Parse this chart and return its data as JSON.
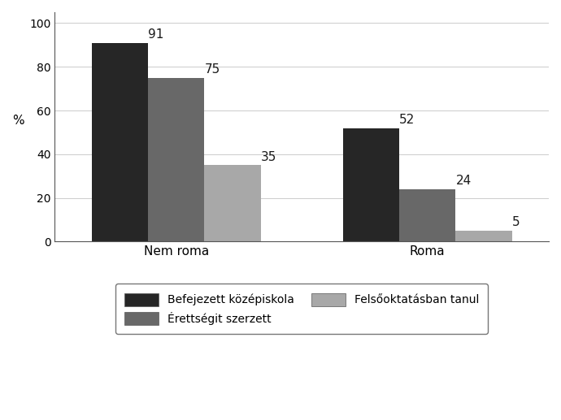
{
  "categories": [
    "Nem roma",
    "Roma"
  ],
  "series": [
    {
      "label": "Befejezett középiskola",
      "values": [
        91,
        52
      ],
      "color": "#262626"
    },
    {
      "label": "Érettségit szerzett",
      "values": [
        75,
        24
      ],
      "color": "#686868"
    },
    {
      "label": "Felsőoktatásban tanul",
      "values": [
        35,
        5
      ],
      "color": "#a8a8a8"
    }
  ],
  "legend_order": [
    0,
    2,
    1
  ],
  "legend_ncol": 2,
  "legend_labels_col1": [
    "Befejezett középiskola",
    "Felsőoktatásban tanul"
  ],
  "legend_labels_col2": [
    "Érettségit szerzett"
  ],
  "ylabel": "%",
  "ylim": [
    0,
    105
  ],
  "yticks": [
    0,
    20,
    40,
    60,
    80,
    100
  ],
  "bar_width": 0.13,
  "group_centers": [
    0.28,
    0.86
  ],
  "label_fontsize": 11,
  "axis_fontsize": 11,
  "legend_fontsize": 10,
  "background_color": "#ffffff",
  "edge_color": "#555555"
}
